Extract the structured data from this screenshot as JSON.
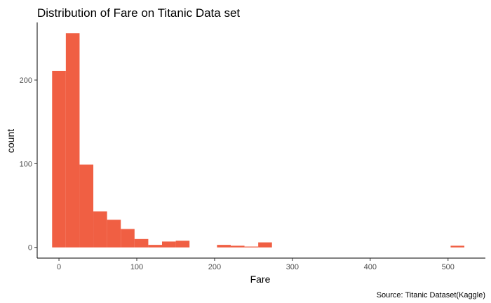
{
  "chart_data": {
    "type": "bar",
    "title": "Distribution of Fare on Titanic Data set",
    "xlabel": "Fare",
    "ylabel": "count",
    "caption": "Source: Titanic Dataset(Kaggle)",
    "bin_width": 17.66,
    "bins": [
      {
        "x0": -8.83,
        "x1": 8.83,
        "count": 211
      },
      {
        "x0": 8.83,
        "x1": 26.49,
        "count": 256
      },
      {
        "x0": 26.49,
        "x1": 44.15,
        "count": 99
      },
      {
        "x0": 44.15,
        "x1": 61.81,
        "count": 43
      },
      {
        "x0": 61.81,
        "x1": 79.47,
        "count": 33
      },
      {
        "x0": 79.47,
        "x1": 97.13,
        "count": 22
      },
      {
        "x0": 97.13,
        "x1": 114.79,
        "count": 10
      },
      {
        "x0": 114.79,
        "x1": 132.45,
        "count": 3
      },
      {
        "x0": 132.45,
        "x1": 150.11,
        "count": 7
      },
      {
        "x0": 150.11,
        "x1": 167.77,
        "count": 8
      },
      {
        "x0": 203.09,
        "x1": 220.75,
        "count": 3
      },
      {
        "x0": 220.75,
        "x1": 238.41,
        "count": 2
      },
      {
        "x0": 238.41,
        "x1": 256.07,
        "count": 1
      },
      {
        "x0": 256.07,
        "x1": 273.73,
        "count": 6
      },
      {
        "x0": 503.31,
        "x1": 520.97,
        "count": 2
      }
    ],
    "xticks": [
      0,
      100,
      200,
      300,
      400,
      500
    ],
    "yticks": [
      0,
      100,
      200
    ],
    "xlim": [
      -28,
      548
    ],
    "ylim": [
      -12.8,
      268.8
    ],
    "grid": false,
    "colors": {
      "bar": "#f05f43",
      "axis": "#000000",
      "tick_label": "#4d4d4d"
    }
  }
}
